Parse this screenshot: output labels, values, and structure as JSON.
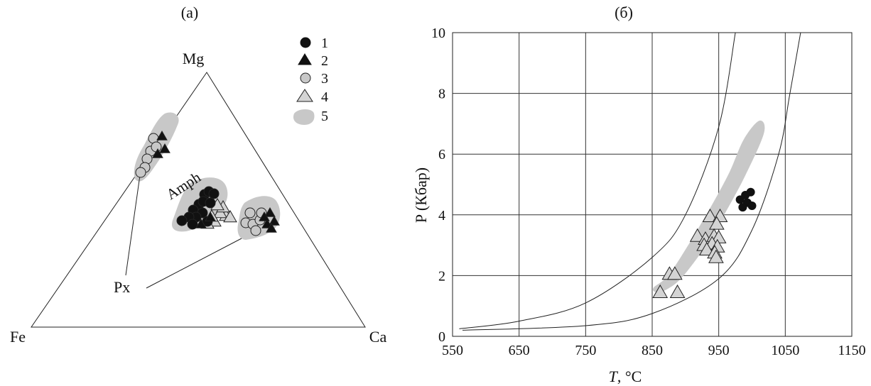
{
  "chart_data": [
    {
      "type": "scatter",
      "subtype": "ternary",
      "panel_label": "(a)",
      "vertices": {
        "top": "Mg",
        "left": "Fe",
        "right": "Ca"
      },
      "region_labels": {
        "amph": "Amph",
        "px": "Px"
      },
      "legend": {
        "placement": "top-right",
        "items": [
          {
            "key": "1",
            "label": "1",
            "symbol": "circle",
            "fill": "#111111"
          },
          {
            "key": "2",
            "label": "2",
            "symbol": "triangle",
            "fill": "#111111"
          },
          {
            "key": "3",
            "label": "3",
            "symbol": "circle",
            "fill": "#c8c8c8"
          },
          {
            "key": "4",
            "label": "4",
            "symbol": "triangle",
            "fill": "#d4d4d4"
          },
          {
            "key": "5",
            "label": "5",
            "symbol": "field",
            "fill": "#c8c8c8"
          }
        ]
      }
    },
    {
      "type": "scatter",
      "panel_label": "(б)",
      "xlabel_italic": "T",
      "xlabel_rest": ", °C",
      "ylabel": "P (Кбар)",
      "xlim": [
        550,
        1150
      ],
      "ylim": [
        0,
        10
      ],
      "x_ticks": [
        550,
        650,
        750,
        850,
        950,
        1050,
        1150
      ],
      "y_ticks": [
        0,
        2,
        4,
        6,
        8,
        10
      ],
      "grid": true,
      "series": [
        {
          "key": "1",
          "marker": "circle",
          "fill": "#111111",
          "points": [
            [
              982,
              4.5
            ],
            [
              990,
              4.65
            ],
            [
              998,
              4.75
            ],
            [
              993,
              4.4
            ],
            [
              1000,
              4.3
            ],
            [
              986,
              4.25
            ]
          ]
        },
        {
          "key": "4",
          "marker": "triangle",
          "fill": "#d4d4d4",
          "points": [
            [
              937,
              3.95
            ],
            [
              952,
              3.95
            ],
            [
              947,
              3.7
            ],
            [
              918,
              3.3
            ],
            [
              930,
              3.2
            ],
            [
              943,
              3.3
            ],
            [
              950,
              3.25
            ],
            [
              928,
              3.0
            ],
            [
              940,
              3.05
            ],
            [
              948,
              2.95
            ],
            [
              932,
              2.85
            ],
            [
              944,
              2.75
            ],
            [
              946,
              2.6
            ],
            [
              876,
              2.05
            ],
            [
              884,
              2.05
            ],
            [
              862,
              1.45
            ],
            [
              888,
              1.45
            ]
          ]
        }
      ],
      "curves": [
        {
          "points": [
            [
              560,
              0.25
            ],
            [
              650,
              0.5
            ],
            [
              750,
              1.1
            ],
            [
              850,
              2.6
            ],
            [
              900,
              4.0
            ],
            [
              950,
              6.9
            ],
            [
              975,
              10
            ]
          ]
        },
        {
          "points": [
            [
              565,
              0.2
            ],
            [
              750,
              0.35
            ],
            [
              850,
              0.75
            ],
            [
              950,
              1.9
            ],
            [
              1000,
              3.5
            ],
            [
              1040,
              6.0
            ],
            [
              1057,
              8.0
            ],
            [
              1073,
              10
            ]
          ]
        }
      ],
      "field": {
        "legend_key": "5",
        "outline": [
          [
            868,
            1.5
          ],
          [
            893,
            1.9
          ],
          [
            928,
            2.9
          ],
          [
            958,
            4.0
          ],
          [
            990,
            5.3
          ],
          [
            1018,
            6.7
          ],
          [
            1011,
            7.1
          ],
          [
            988,
            6.5
          ],
          [
            966,
            5.4
          ],
          [
            939,
            4.3
          ],
          [
            904,
            3.0
          ],
          [
            874,
            2.0
          ],
          [
            852,
            1.6
          ],
          [
            856,
            1.45
          ]
        ]
      }
    }
  ]
}
